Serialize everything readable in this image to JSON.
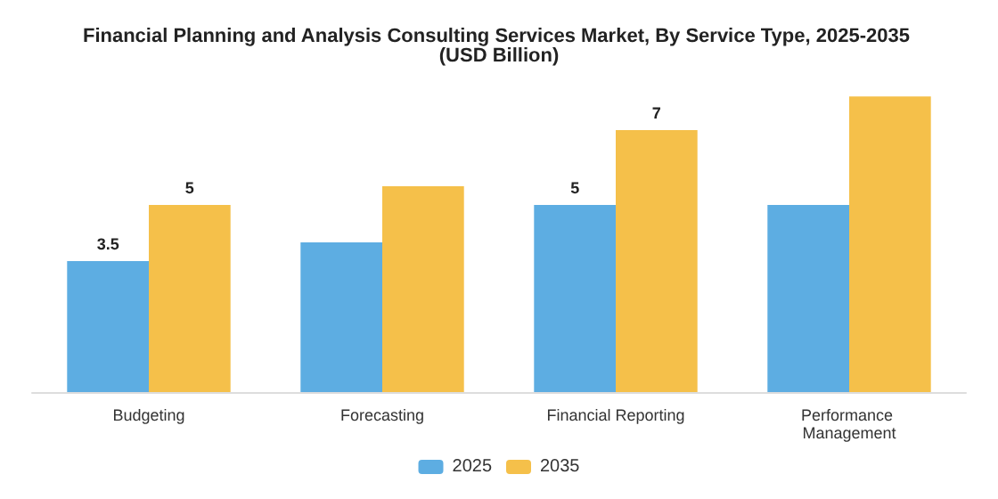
{
  "chart_data": {
    "type": "bar",
    "title": "Financial Planning and Analysis Consulting Services Market, By Service Type, 2025-2035 (USD Billion)",
    "categories": [
      "Budgeting",
      "Forecasting",
      "Financial Reporting",
      "Performance Management"
    ],
    "series": [
      {
        "name": "2025",
        "color": "#5dade2",
        "values": [
          3.5,
          4.0,
          5.0,
          5.0
        ],
        "value_labels": [
          "3.5",
          null,
          "5",
          null
        ]
      },
      {
        "name": "2035",
        "color": "#f5c04a",
        "values": [
          5.0,
          5.5,
          7.0,
          7.9
        ],
        "value_labels": [
          "5",
          null,
          "7",
          null
        ]
      }
    ],
    "legend": "bottom"
  }
}
